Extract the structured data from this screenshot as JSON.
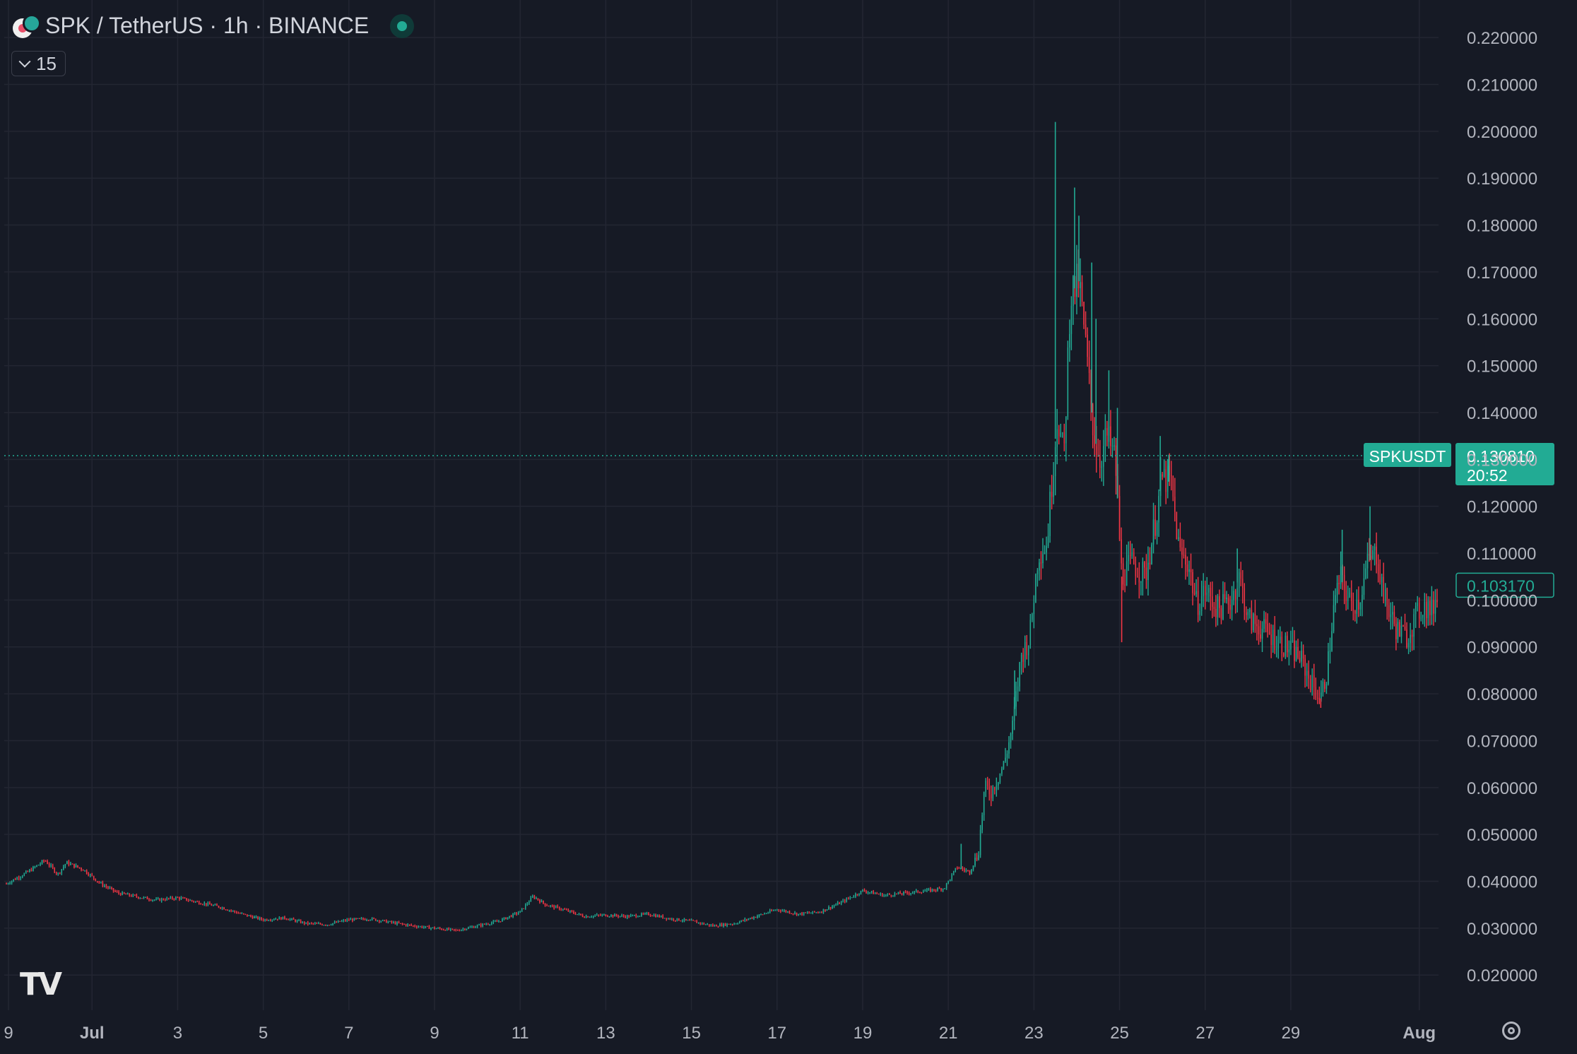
{
  "header": {
    "title": "SPK / TetherUS · 1h · BINANCE",
    "indicator_count": "15",
    "icons": [
      "spk-symbol-icon",
      "market-status-icon",
      "chevron-down-icon"
    ]
  },
  "colors": {
    "background": "#161a25",
    "grid": "#232632",
    "up": "#22ab94",
    "down": "#f23645",
    "axis_text": "#b2b5be",
    "price_line": "#22ab94"
  },
  "chart_data": {
    "type": "candlestick",
    "symbol": "SPKUSDT",
    "interval": "1h",
    "exchange": "BINANCE",
    "ylim": [
      0.0125,
      0.2265
    ],
    "y_ticks": [
      "0.220000",
      "0.210000",
      "0.200000",
      "0.190000",
      "0.180000",
      "0.170000",
      "0.160000",
      "0.150000",
      "0.140000",
      "0.130000",
      "0.120000",
      "0.110000",
      "0.100000",
      "0.090000",
      "0.080000",
      "0.070000",
      "0.060000",
      "0.050000",
      "0.040000",
      "0.030000",
      "0.020000"
    ],
    "x_ticks": [
      {
        "label": "9",
        "day": -0.95,
        "bold": false
      },
      {
        "label": "Jul",
        "day": 1,
        "bold": true
      },
      {
        "label": "3",
        "day": 3,
        "bold": false
      },
      {
        "label": "5",
        "day": 5,
        "bold": false
      },
      {
        "label": "7",
        "day": 7,
        "bold": false
      },
      {
        "label": "9",
        "day": 9,
        "bold": false
      },
      {
        "label": "11",
        "day": 11,
        "bold": false
      },
      {
        "label": "13",
        "day": 13,
        "bold": false
      },
      {
        "label": "15",
        "day": 15,
        "bold": false
      },
      {
        "label": "17",
        "day": 17,
        "bold": false
      },
      {
        "label": "19",
        "day": 19,
        "bold": false
      },
      {
        "label": "21",
        "day": 21,
        "bold": false
      },
      {
        "label": "23",
        "day": 23,
        "bold": false
      },
      {
        "label": "25",
        "day": 25,
        "bold": false
      },
      {
        "label": "27",
        "day": 27,
        "bold": false
      },
      {
        "label": "29",
        "day": 29,
        "bold": false
      },
      {
        "label": "Aug",
        "day": 32,
        "bold": true
      }
    ],
    "x_range_days": [
      -1.05,
      32.45
    ],
    "price_path": [
      [
        -1.0,
        0.0395
      ],
      [
        -0.5,
        0.042
      ],
      [
        -0.1,
        0.0445
      ],
      [
        0.2,
        0.0415
      ],
      [
        0.4,
        0.044
      ],
      [
        0.8,
        0.0425
      ],
      [
        1.2,
        0.0395
      ],
      [
        1.6,
        0.0375
      ],
      [
        2.0,
        0.0368
      ],
      [
        2.5,
        0.036
      ],
      [
        3.0,
        0.0365
      ],
      [
        3.5,
        0.0355
      ],
      [
        4.0,
        0.0345
      ],
      [
        4.5,
        0.033
      ],
      [
        5.0,
        0.0318
      ],
      [
        5.5,
        0.0322
      ],
      [
        6.0,
        0.031
      ],
      [
        6.5,
        0.0308
      ],
      [
        7.0,
        0.0318
      ],
      [
        7.5,
        0.032
      ],
      [
        8.0,
        0.0312
      ],
      [
        8.5,
        0.0305
      ],
      [
        9.0,
        0.03
      ],
      [
        9.5,
        0.0295
      ],
      [
        10.0,
        0.0305
      ],
      [
        10.5,
        0.0315
      ],
      [
        11.0,
        0.0335
      ],
      [
        11.3,
        0.0368
      ],
      [
        11.6,
        0.035
      ],
      [
        12.0,
        0.034
      ],
      [
        12.5,
        0.0325
      ],
      [
        13.0,
        0.0328
      ],
      [
        13.5,
        0.0325
      ],
      [
        14.0,
        0.033
      ],
      [
        14.5,
        0.032
      ],
      [
        15.0,
        0.0315
      ],
      [
        15.5,
        0.0305
      ],
      [
        16.0,
        0.031
      ],
      [
        16.5,
        0.0325
      ],
      [
        17.0,
        0.034
      ],
      [
        17.5,
        0.033
      ],
      [
        18.0,
        0.0335
      ],
      [
        18.5,
        0.0355
      ],
      [
        19.0,
        0.038
      ],
      [
        19.5,
        0.037
      ],
      [
        20.0,
        0.0375
      ],
      [
        20.5,
        0.038
      ],
      [
        20.9,
        0.0385
      ],
      [
        21.2,
        0.043
      ],
      [
        21.5,
        0.042
      ],
      [
        21.7,
        0.046
      ],
      [
        21.85,
        0.06
      ],
      [
        22.0,
        0.059
      ],
      [
        22.3,
        0.065
      ],
      [
        22.5,
        0.073
      ],
      [
        22.7,
        0.088
      ],
      [
        22.9,
        0.092
      ],
      [
        23.1,
        0.11
      ],
      [
        23.3,
        0.112
      ],
      [
        23.55,
        0.14
      ],
      [
        23.7,
        0.13
      ],
      [
        23.85,
        0.165
      ],
      [
        24.05,
        0.168
      ],
      [
        24.2,
        0.155
      ],
      [
        24.4,
        0.135
      ],
      [
        24.55,
        0.13
      ],
      [
        24.7,
        0.135
      ],
      [
        24.9,
        0.13
      ],
      [
        25.05,
        0.105
      ],
      [
        25.3,
        0.108
      ],
      [
        25.6,
        0.105
      ],
      [
        25.8,
        0.115
      ],
      [
        26.0,
        0.126
      ],
      [
        26.2,
        0.125
      ],
      [
        26.4,
        0.11
      ],
      [
        26.6,
        0.108
      ],
      [
        26.8,
        0.099
      ],
      [
        27.0,
        0.102
      ],
      [
        27.3,
        0.098
      ],
      [
        27.6,
        0.1
      ],
      [
        27.8,
        0.105
      ],
      [
        28.0,
        0.096
      ],
      [
        28.3,
        0.094
      ],
      [
        28.6,
        0.092
      ],
      [
        28.9,
        0.09
      ],
      [
        29.2,
        0.088
      ],
      [
        29.5,
        0.082
      ],
      [
        29.7,
        0.079
      ],
      [
        29.85,
        0.085
      ],
      [
        30.0,
        0.098
      ],
      [
        30.15,
        0.105
      ],
      [
        30.4,
        0.099
      ],
      [
        30.6,
        0.1
      ],
      [
        30.8,
        0.108
      ],
      [
        31.0,
        0.11
      ],
      [
        31.2,
        0.1
      ],
      [
        31.45,
        0.094
      ],
      [
        31.7,
        0.092
      ],
      [
        31.9,
        0.096
      ],
      [
        32.1,
        0.099
      ],
      [
        32.3,
        0.0975
      ],
      [
        32.45,
        0.1032
      ]
    ],
    "spikes": [
      [
        23.5,
        0.202
      ],
      [
        23.95,
        0.188
      ],
      [
        24.05,
        0.182
      ],
      [
        24.35,
        0.172
      ],
      [
        24.45,
        0.16
      ],
      [
        24.75,
        0.149
      ],
      [
        24.95,
        0.141
      ],
      [
        25.05,
        0.091
      ],
      [
        25.95,
        0.135
      ],
      [
        26.15,
        0.131
      ],
      [
        27.75,
        0.111
      ],
      [
        30.2,
        0.115
      ],
      [
        30.85,
        0.12
      ],
      [
        29.7,
        0.077
      ],
      [
        22.55,
        0.085
      ],
      [
        21.3,
        0.048
      ]
    ],
    "last_price": 0.10317,
    "last_price_label": "0.103170",
    "marker": {
      "symbol_label": "SPKUSDT",
      "price": 0.13081,
      "price_label": "0.130810",
      "countdown": "20:52"
    }
  }
}
